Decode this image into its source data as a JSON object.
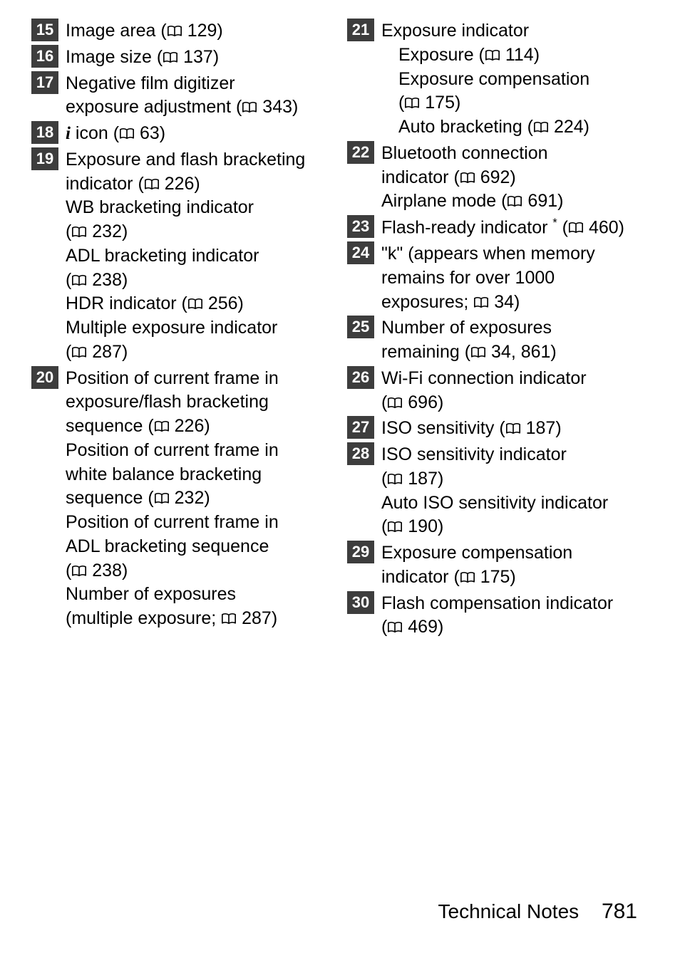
{
  "badge_bg": "#3d3d3d",
  "badge_fg": "#ffffff",
  "text_color": "#000000",
  "book_icon_color": "#000000",
  "footer": {
    "section": "Technical Notes",
    "page": "781"
  },
  "left": [
    {
      "num": "15",
      "lines": [
        {
          "t": "Image area (📖 129)"
        }
      ]
    },
    {
      "num": "16",
      "lines": [
        {
          "t": "Image size (📖 137)"
        }
      ]
    },
    {
      "num": "17",
      "lines": [
        {
          "t": "Negative film digitizer"
        },
        {
          "t": "exposure adjustment (📖 343)"
        }
      ]
    },
    {
      "num": "18",
      "lines": [
        {
          "t": "ℹ icon (📖 63)"
        }
      ]
    },
    {
      "num": "19",
      "lines": [
        {
          "t": "Exposure and flash bracketing"
        },
        {
          "t": "indicator (📖 226)"
        },
        {
          "t": "WB bracketing indicator"
        },
        {
          "t": "(📖 232)"
        },
        {
          "t": "ADL bracketing indicator"
        },
        {
          "t": "(📖 238)"
        },
        {
          "t": "HDR indicator (📖 256)"
        },
        {
          "t": "Multiple exposure indicator"
        },
        {
          "t": "(📖 287)"
        }
      ]
    },
    {
      "num": "20",
      "lines": [
        {
          "t": "Position of current frame in"
        },
        {
          "t": "exposure/flash bracketing"
        },
        {
          "t": "sequence (📖 226)"
        },
        {
          "t": "Position of current frame in"
        },
        {
          "t": "white balance bracketing"
        },
        {
          "t": "sequence (📖 232)"
        },
        {
          "t": "Position of current frame in"
        },
        {
          "t": "ADL bracketing sequence"
        },
        {
          "t": "(📖 238)"
        },
        {
          "t": "Number of exposures"
        },
        {
          "t": "(multiple exposure; 📖 287)"
        }
      ]
    }
  ],
  "right": [
    {
      "num": "21",
      "lines": [
        {
          "t": "Exposure indicator"
        },
        {
          "t": "Exposure (📖 114)",
          "indent": true
        },
        {
          "t": "Exposure compensation",
          "indent": true
        },
        {
          "t": "(📖 175)",
          "indent": true
        },
        {
          "t": "Auto bracketing (📖 224)",
          "indent": true
        }
      ]
    },
    {
      "num": "22",
      "lines": [
        {
          "t": "Bluetooth connection"
        },
        {
          "t": "indicator (📖 692)"
        },
        {
          "t": "Airplane mode (📖 691)"
        }
      ]
    },
    {
      "num": "23",
      "lines": [
        {
          "t": "Flash-ready indicator ⃰ (📖 460)"
        }
      ]
    },
    {
      "num": "24",
      "lines": [
        {
          "t": "\"k\" (appears when memory"
        },
        {
          "t": "remains for over 1000"
        },
        {
          "t": "exposures; 📖 34)"
        }
      ]
    },
    {
      "num": "25",
      "lines": [
        {
          "t": "Number of exposures"
        },
        {
          "t": "remaining (📖 34, 861)"
        }
      ]
    },
    {
      "num": "26",
      "lines": [
        {
          "t": "Wi-Fi connection indicator"
        },
        {
          "t": "(📖 696)"
        }
      ]
    },
    {
      "num": "27",
      "lines": [
        {
          "t": "ISO sensitivity (📖 187)"
        }
      ]
    },
    {
      "num": "28",
      "lines": [
        {
          "t": "ISO sensitivity indicator"
        },
        {
          "t": "(📖 187)"
        },
        {
          "t": "Auto ISO sensitivity indicator"
        },
        {
          "t": "(📖 190)"
        }
      ]
    },
    {
      "num": "29",
      "lines": [
        {
          "t": "Exposure compensation"
        },
        {
          "t": "indicator (📖 175)"
        }
      ]
    },
    {
      "num": "30",
      "lines": [
        {
          "t": "Flash compensation indicator"
        },
        {
          "t": "(📖 469)"
        }
      ]
    }
  ]
}
